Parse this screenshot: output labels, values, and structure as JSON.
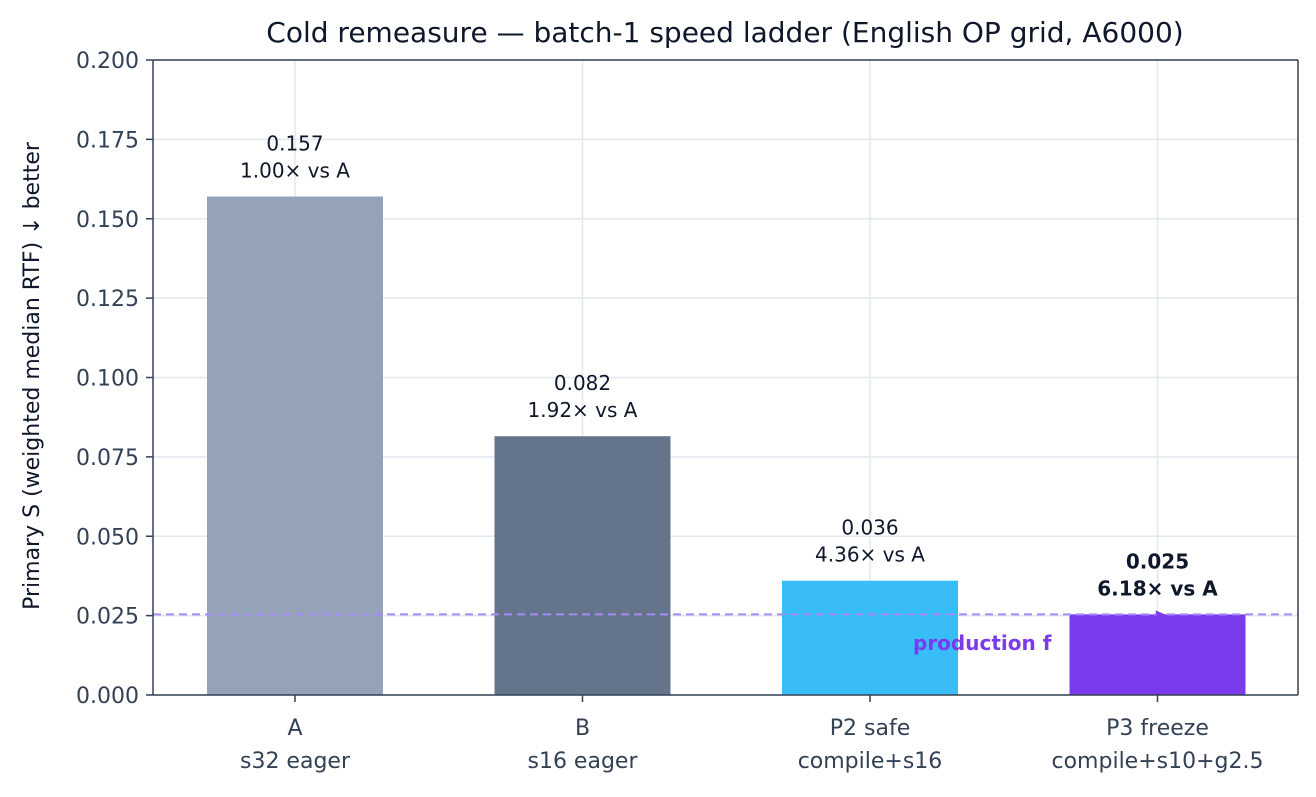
{
  "chart_data": {
    "type": "bar",
    "title": "Cold remeasure — batch-1 speed ladder (English OP grid, A6000)",
    "ylabel": "Primary S  (weighted median RTF)  ↓ better",
    "xlabel": "",
    "ylim": [
      0,
      0.2
    ],
    "yticks": [
      "0.000",
      "0.025",
      "0.050",
      "0.075",
      "0.100",
      "0.125",
      "0.150",
      "0.175",
      "0.200"
    ],
    "grid": true,
    "categories": [
      {
        "name": "A",
        "sub": "s32 eager"
      },
      {
        "name": "B",
        "sub": "s16 eager"
      },
      {
        "name": "P2 safe",
        "sub": "compile+s16"
      },
      {
        "name": "P3 freeze",
        "sub": "compile+s10+g2.5"
      }
    ],
    "values": [
      0.157,
      0.0815,
      0.036,
      0.0254
    ],
    "value_labels": [
      "0.157",
      "0.082",
      "0.036",
      "0.025"
    ],
    "speedup_labels": [
      "1.00× vs A",
      "1.92× vs A",
      "4.36× vs A",
      "6.18× vs A"
    ],
    "bold_bar_index": 3,
    "colors": [
      "#94a3b8",
      "#64748b",
      "#38bdf8",
      "#7c3aed"
    ],
    "reference_line": {
      "value": 0.0254,
      "color": "#a78bfa",
      "style": "dashed"
    },
    "annotation": {
      "text": "production f",
      "color": "#7c3aed",
      "points_to_bar": 3
    }
  }
}
